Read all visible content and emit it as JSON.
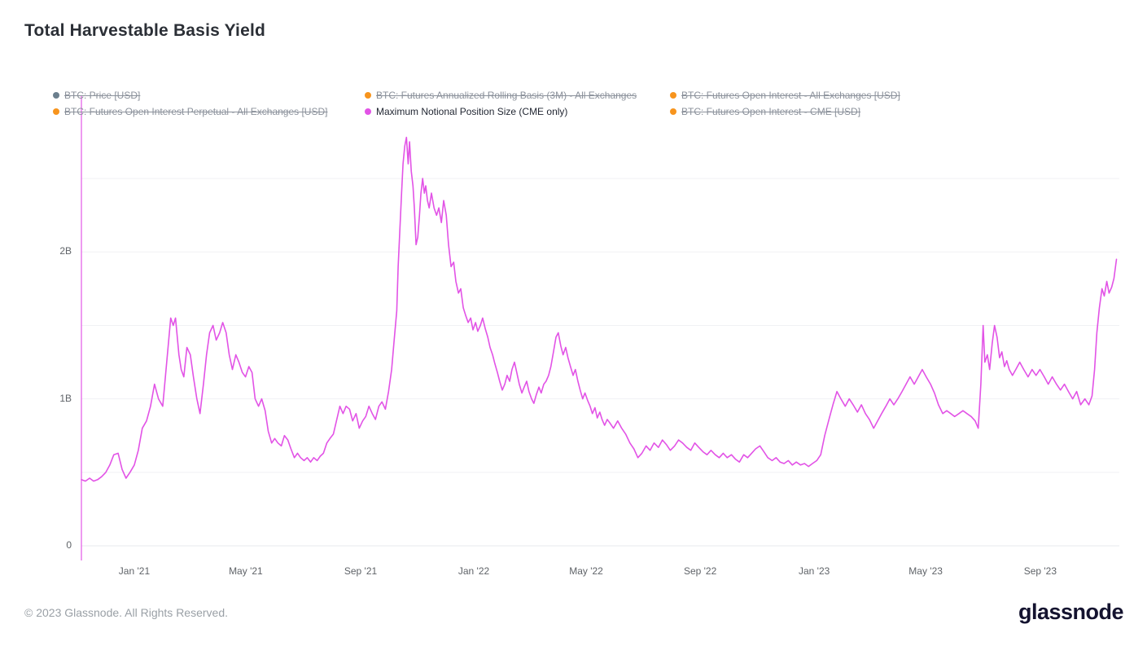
{
  "header": {
    "title": "Total Harvestable Basis Yield"
  },
  "legend": {
    "rows": [
      [
        {
          "label": "BTC: Price [USD]",
          "color": "#6b7f8d",
          "active": false
        },
        {
          "label": "BTC: Futures Annualized Rolling Basis (3M) - All Exchanges",
          "color": "#f7941d",
          "active": false
        },
        {
          "label": "BTC: Futures Open Interest - All Exchanges [USD]",
          "color": "#f7941d",
          "active": false
        }
      ],
      [
        {
          "label": "BTC: Futures Open Interest Perpetual - All Exchanges [USD]",
          "color": "#f7941d",
          "active": false
        },
        {
          "label": "Maximum Notional Position Size (CME only)",
          "color": "#e253e6",
          "active": true
        },
        {
          "label": "BTC: Futures Open Interest - CME [USD]",
          "color": "#f7941d",
          "active": false
        }
      ]
    ]
  },
  "footer": {
    "copyright": "© 2023 Glassnode. All Rights Reserved.",
    "brand": "glassnode"
  },
  "chart_data": {
    "type": "line",
    "title": "Total Harvestable Basis Yield",
    "series_name": "Maximum Notional Position Size (CME only)",
    "line_color": "#e253e6",
    "grid": true,
    "legend_position": "top",
    "y_unit": "USD billions",
    "ylim": [
      0,
      2.8
    ],
    "y_ticks": [
      {
        "value": 0,
        "label": "0"
      },
      {
        "value": 1,
        "label": "1B"
      },
      {
        "value": 2,
        "label": "2B"
      }
    ],
    "gridlines_at": [
      0.5,
      1,
      1.5,
      2,
      2.5
    ],
    "x_start_date": "2020-11-05",
    "x_end_date": "2023-11-25",
    "x_unit": "months since 2020-11-05",
    "x_range_months": [
      0,
      36.5
    ],
    "x_ticks": [
      {
        "m": 1.86,
        "label": "Jan '21"
      },
      {
        "m": 5.78,
        "label": "May '21"
      },
      {
        "m": 9.82,
        "label": "Sep '21"
      },
      {
        "m": 13.8,
        "label": "Jan '22"
      },
      {
        "m": 17.75,
        "label": "May '22"
      },
      {
        "m": 21.76,
        "label": "Sep '22"
      },
      {
        "m": 25.77,
        "label": "Jan '23"
      },
      {
        "m": 29.69,
        "label": "May '23"
      },
      {
        "m": 33.72,
        "label": "Sep '23"
      }
    ],
    "annotations": [
      {
        "type": "vline",
        "at_month": 0,
        "color": "#e253e6"
      }
    ],
    "points": [
      [
        0,
        0.45
      ],
      [
        0.14,
        0.44
      ],
      [
        0.29,
        0.46
      ],
      [
        0.43,
        0.44
      ],
      [
        0.57,
        0.45
      ],
      [
        0.71,
        0.47
      ],
      [
        0.86,
        0.5
      ],
      [
        1,
        0.55
      ],
      [
        1.14,
        0.62
      ],
      [
        1.29,
        0.63
      ],
      [
        1.43,
        0.52
      ],
      [
        1.57,
        0.46
      ],
      [
        1.71,
        0.5
      ],
      [
        1.86,
        0.55
      ],
      [
        2,
        0.65
      ],
      [
        2.14,
        0.8
      ],
      [
        2.29,
        0.85
      ],
      [
        2.43,
        0.95
      ],
      [
        2.57,
        1.1
      ],
      [
        2.71,
        1
      ],
      [
        2.86,
        0.95
      ],
      [
        3,
        1.25
      ],
      [
        3.14,
        1.55
      ],
      [
        3.23,
        1.5
      ],
      [
        3.31,
        1.55
      ],
      [
        3.43,
        1.3
      ],
      [
        3.51,
        1.2
      ],
      [
        3.6,
        1.15
      ],
      [
        3.71,
        1.35
      ],
      [
        3.83,
        1.3
      ],
      [
        3.94,
        1.15
      ],
      [
        4.06,
        1
      ],
      [
        4.17,
        0.9
      ],
      [
        4.29,
        1.1
      ],
      [
        4.4,
        1.3
      ],
      [
        4.51,
        1.45
      ],
      [
        4.63,
        1.5
      ],
      [
        4.74,
        1.4
      ],
      [
        4.86,
        1.45
      ],
      [
        4.97,
        1.52
      ],
      [
        5.09,
        1.45
      ],
      [
        5.2,
        1.3
      ],
      [
        5.31,
        1.2
      ],
      [
        5.43,
        1.3
      ],
      [
        5.54,
        1.25
      ],
      [
        5.66,
        1.18
      ],
      [
        5.77,
        1.15
      ],
      [
        5.89,
        1.22
      ],
      [
        6,
        1.18
      ],
      [
        6.11,
        1
      ],
      [
        6.23,
        0.95
      ],
      [
        6.34,
        1
      ],
      [
        6.46,
        0.92
      ],
      [
        6.57,
        0.78
      ],
      [
        6.69,
        0.7
      ],
      [
        6.8,
        0.73
      ],
      [
        6.91,
        0.7
      ],
      [
        7.03,
        0.68
      ],
      [
        7.14,
        0.75
      ],
      [
        7.26,
        0.72
      ],
      [
        7.37,
        0.66
      ],
      [
        7.49,
        0.6
      ],
      [
        7.6,
        0.63
      ],
      [
        7.71,
        0.6
      ],
      [
        7.83,
        0.58
      ],
      [
        7.94,
        0.6
      ],
      [
        8.06,
        0.57
      ],
      [
        8.17,
        0.6
      ],
      [
        8.29,
        0.58
      ],
      [
        8.4,
        0.61
      ],
      [
        8.51,
        0.63
      ],
      [
        8.63,
        0.7
      ],
      [
        8.74,
        0.73
      ],
      [
        8.86,
        0.76
      ],
      [
        8.97,
        0.85
      ],
      [
        9.09,
        0.95
      ],
      [
        9.2,
        0.9
      ],
      [
        9.31,
        0.95
      ],
      [
        9.43,
        0.93
      ],
      [
        9.54,
        0.85
      ],
      [
        9.66,
        0.9
      ],
      [
        9.77,
        0.8
      ],
      [
        9.89,
        0.85
      ],
      [
        10,
        0.88
      ],
      [
        10.11,
        0.95
      ],
      [
        10.23,
        0.9
      ],
      [
        10.34,
        0.86
      ],
      [
        10.46,
        0.95
      ],
      [
        10.57,
        0.98
      ],
      [
        10.69,
        0.93
      ],
      [
        10.8,
        1.05
      ],
      [
        10.91,
        1.2
      ],
      [
        11,
        1.4
      ],
      [
        11.09,
        1.6
      ],
      [
        11.14,
        1.9
      ],
      [
        11.2,
        2.15
      ],
      [
        11.26,
        2.4
      ],
      [
        11.31,
        2.6
      ],
      [
        11.37,
        2.72
      ],
      [
        11.43,
        2.78
      ],
      [
        11.49,
        2.6
      ],
      [
        11.54,
        2.75
      ],
      [
        11.6,
        2.55
      ],
      [
        11.66,
        2.45
      ],
      [
        11.71,
        2.3
      ],
      [
        11.77,
        2.05
      ],
      [
        11.83,
        2.1
      ],
      [
        11.89,
        2.25
      ],
      [
        11.94,
        2.4
      ],
      [
        12,
        2.5
      ],
      [
        12.06,
        2.4
      ],
      [
        12.11,
        2.45
      ],
      [
        12.17,
        2.35
      ],
      [
        12.23,
        2.3
      ],
      [
        12.31,
        2.4
      ],
      [
        12.4,
        2.3
      ],
      [
        12.49,
        2.25
      ],
      [
        12.57,
        2.3
      ],
      [
        12.66,
        2.2
      ],
      [
        12.74,
        2.35
      ],
      [
        12.83,
        2.25
      ],
      [
        12.91,
        2.05
      ],
      [
        13,
        1.9
      ],
      [
        13.09,
        1.93
      ],
      [
        13.17,
        1.8
      ],
      [
        13.26,
        1.72
      ],
      [
        13.34,
        1.75
      ],
      [
        13.43,
        1.62
      ],
      [
        13.51,
        1.57
      ],
      [
        13.6,
        1.52
      ],
      [
        13.69,
        1.55
      ],
      [
        13.77,
        1.47
      ],
      [
        13.86,
        1.52
      ],
      [
        13.94,
        1.46
      ],
      [
        14.03,
        1.5
      ],
      [
        14.11,
        1.55
      ],
      [
        14.2,
        1.48
      ],
      [
        14.29,
        1.42
      ],
      [
        14.37,
        1.35
      ],
      [
        14.46,
        1.3
      ],
      [
        14.54,
        1.24
      ],
      [
        14.63,
        1.18
      ],
      [
        14.71,
        1.12
      ],
      [
        14.8,
        1.06
      ],
      [
        14.89,
        1.1
      ],
      [
        14.97,
        1.16
      ],
      [
        15.06,
        1.12
      ],
      [
        15.14,
        1.2
      ],
      [
        15.23,
        1.25
      ],
      [
        15.31,
        1.18
      ],
      [
        15.4,
        1.1
      ],
      [
        15.49,
        1.04
      ],
      [
        15.57,
        1.08
      ],
      [
        15.66,
        1.12
      ],
      [
        15.74,
        1.05
      ],
      [
        15.83,
        1
      ],
      [
        15.91,
        0.97
      ],
      [
        16,
        1.03
      ],
      [
        16.09,
        1.08
      ],
      [
        16.17,
        1.04
      ],
      [
        16.26,
        1.1
      ],
      [
        16.34,
        1.12
      ],
      [
        16.43,
        1.16
      ],
      [
        16.51,
        1.22
      ],
      [
        16.6,
        1.32
      ],
      [
        16.69,
        1.42
      ],
      [
        16.77,
        1.45
      ],
      [
        16.86,
        1.36
      ],
      [
        16.94,
        1.3
      ],
      [
        17.03,
        1.35
      ],
      [
        17.11,
        1.28
      ],
      [
        17.2,
        1.22
      ],
      [
        17.29,
        1.16
      ],
      [
        17.37,
        1.2
      ],
      [
        17.46,
        1.12
      ],
      [
        17.54,
        1.06
      ],
      [
        17.63,
        1
      ],
      [
        17.71,
        1.04
      ],
      [
        17.8,
        0.99
      ],
      [
        17.89,
        0.95
      ],
      [
        17.97,
        0.9
      ],
      [
        18.06,
        0.94
      ],
      [
        18.14,
        0.87
      ],
      [
        18.23,
        0.91
      ],
      [
        18.31,
        0.86
      ],
      [
        18.4,
        0.82
      ],
      [
        18.49,
        0.86
      ],
      [
        18.57,
        0.84
      ],
      [
        18.71,
        0.8
      ],
      [
        18.86,
        0.85
      ],
      [
        19,
        0.8
      ],
      [
        19.14,
        0.76
      ],
      [
        19.29,
        0.7
      ],
      [
        19.43,
        0.66
      ],
      [
        19.57,
        0.6
      ],
      [
        19.71,
        0.63
      ],
      [
        19.86,
        0.68
      ],
      [
        20,
        0.65
      ],
      [
        20.14,
        0.7
      ],
      [
        20.29,
        0.67
      ],
      [
        20.43,
        0.72
      ],
      [
        20.57,
        0.69
      ],
      [
        20.71,
        0.65
      ],
      [
        20.86,
        0.68
      ],
      [
        21,
        0.72
      ],
      [
        21.14,
        0.7
      ],
      [
        21.29,
        0.67
      ],
      [
        21.43,
        0.65
      ],
      [
        21.57,
        0.7
      ],
      [
        21.71,
        0.67
      ],
      [
        21.86,
        0.64
      ],
      [
        22,
        0.62
      ],
      [
        22.14,
        0.65
      ],
      [
        22.29,
        0.62
      ],
      [
        22.43,
        0.6
      ],
      [
        22.57,
        0.63
      ],
      [
        22.71,
        0.6
      ],
      [
        22.86,
        0.62
      ],
      [
        23,
        0.59
      ],
      [
        23.14,
        0.57
      ],
      [
        23.29,
        0.62
      ],
      [
        23.43,
        0.6
      ],
      [
        23.57,
        0.63
      ],
      [
        23.71,
        0.66
      ],
      [
        23.86,
        0.68
      ],
      [
        24,
        0.64
      ],
      [
        24.14,
        0.6
      ],
      [
        24.29,
        0.58
      ],
      [
        24.43,
        0.6
      ],
      [
        24.57,
        0.57
      ],
      [
        24.71,
        0.56
      ],
      [
        24.86,
        0.58
      ],
      [
        25,
        0.55
      ],
      [
        25.14,
        0.57
      ],
      [
        25.29,
        0.55
      ],
      [
        25.43,
        0.56
      ],
      [
        25.57,
        0.54
      ],
      [
        25.71,
        0.56
      ],
      [
        25.86,
        0.58
      ],
      [
        26,
        0.62
      ],
      [
        26.14,
        0.75
      ],
      [
        26.29,
        0.86
      ],
      [
        26.43,
        0.96
      ],
      [
        26.57,
        1.05
      ],
      [
        26.71,
        1
      ],
      [
        26.86,
        0.95
      ],
      [
        27,
        1
      ],
      [
        27.14,
        0.96
      ],
      [
        27.29,
        0.91
      ],
      [
        27.43,
        0.96
      ],
      [
        27.57,
        0.9
      ],
      [
        27.71,
        0.86
      ],
      [
        27.86,
        0.8
      ],
      [
        28,
        0.85
      ],
      [
        28.14,
        0.9
      ],
      [
        28.29,
        0.95
      ],
      [
        28.43,
        1
      ],
      [
        28.57,
        0.96
      ],
      [
        28.71,
        1
      ],
      [
        28.86,
        1.05
      ],
      [
        29,
        1.1
      ],
      [
        29.14,
        1.15
      ],
      [
        29.29,
        1.1
      ],
      [
        29.43,
        1.15
      ],
      [
        29.57,
        1.2
      ],
      [
        29.71,
        1.15
      ],
      [
        29.86,
        1.1
      ],
      [
        30,
        1.04
      ],
      [
        30.14,
        0.96
      ],
      [
        30.29,
        0.9
      ],
      [
        30.43,
        0.92
      ],
      [
        30.57,
        0.9
      ],
      [
        30.71,
        0.88
      ],
      [
        30.86,
        0.9
      ],
      [
        31,
        0.92
      ],
      [
        31.14,
        0.9
      ],
      [
        31.29,
        0.88
      ],
      [
        31.43,
        0.85
      ],
      [
        31.54,
        0.8
      ],
      [
        31.63,
        1.1
      ],
      [
        31.71,
        1.5
      ],
      [
        31.77,
        1.25
      ],
      [
        31.86,
        1.3
      ],
      [
        31.94,
        1.2
      ],
      [
        32.03,
        1.38
      ],
      [
        32.11,
        1.5
      ],
      [
        32.2,
        1.42
      ],
      [
        32.29,
        1.28
      ],
      [
        32.37,
        1.32
      ],
      [
        32.46,
        1.22
      ],
      [
        32.54,
        1.26
      ],
      [
        32.63,
        1.2
      ],
      [
        32.74,
        1.16
      ],
      [
        32.86,
        1.2
      ],
      [
        33,
        1.25
      ],
      [
        33.14,
        1.2
      ],
      [
        33.29,
        1.15
      ],
      [
        33.43,
        1.2
      ],
      [
        33.57,
        1.16
      ],
      [
        33.71,
        1.2
      ],
      [
        33.86,
        1.15
      ],
      [
        34,
        1.1
      ],
      [
        34.14,
        1.15
      ],
      [
        34.29,
        1.1
      ],
      [
        34.43,
        1.06
      ],
      [
        34.57,
        1.1
      ],
      [
        34.71,
        1.05
      ],
      [
        34.86,
        1
      ],
      [
        35,
        1.05
      ],
      [
        35.14,
        0.96
      ],
      [
        35.29,
        1
      ],
      [
        35.43,
        0.96
      ],
      [
        35.54,
        1.02
      ],
      [
        35.63,
        1.2
      ],
      [
        35.71,
        1.45
      ],
      [
        35.8,
        1.62
      ],
      [
        35.89,
        1.75
      ],
      [
        35.97,
        1.7
      ],
      [
        36.06,
        1.8
      ],
      [
        36.14,
        1.72
      ],
      [
        36.23,
        1.76
      ],
      [
        36.31,
        1.82
      ],
      [
        36.4,
        1.95
      ]
    ]
  }
}
